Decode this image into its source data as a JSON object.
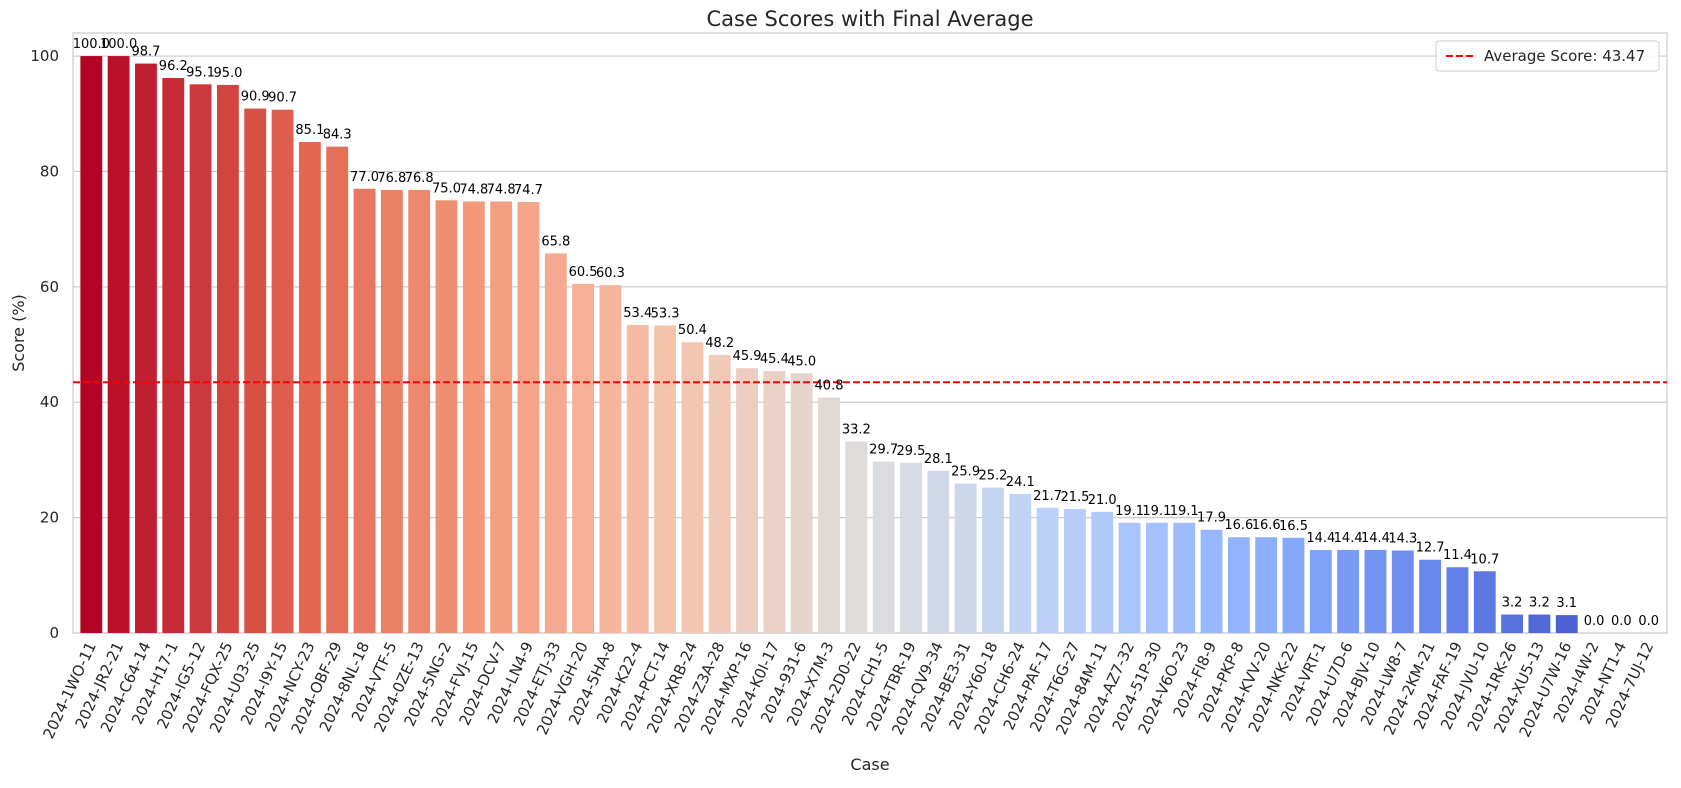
{
  "chart_data": {
    "type": "bar",
    "title": "Case Scores with Final Average",
    "xlabel": "Case",
    "ylabel": "Score (%)",
    "ylim": [
      0,
      104
    ],
    "yticks": [
      0,
      20,
      40,
      60,
      80,
      100
    ],
    "grid": "horizontal",
    "legend": {
      "placement": "top-right",
      "label": "Average Score: 43.47",
      "color": "#ff0000",
      "style": "dashed"
    },
    "average": 43.47,
    "colormap": "coolwarm",
    "categories": [
      "2024-1WO-11",
      "2024-JR2-21",
      "2024-C64-14",
      "2024-H17-1",
      "2024-IG5-12",
      "2024-FQX-25",
      "2024-U03-25",
      "2024-I9Y-15",
      "2024-NCY-23",
      "2024-OBF-29",
      "2024-8NL-18",
      "2024-VTF-5",
      "2024-0ZE-13",
      "2024-5NG-2",
      "2024-FVJ-15",
      "2024-DCV-7",
      "2024-LN4-9",
      "2024-ETJ-33",
      "2024-VGH-20",
      "2024-5HA-8",
      "2024-K22-4",
      "2024-PCT-14",
      "2024-XRB-24",
      "2024-Z3A-28",
      "2024-MXP-16",
      "2024-K0I-17",
      "2024-931-6",
      "2024-X7M-3",
      "2024-2D0-22",
      "2024-CH1-5",
      "2024-TBR-19",
      "2024-QV9-34",
      "2024-BE3-31",
      "2024-Y60-18",
      "2024-CH6-24",
      "2024-PAF-17",
      "2024-T6G-27",
      "2024-84M-11",
      "2024-AZ7-32",
      "2024-51P-30",
      "2024-V6O-23",
      "2024-FI8-9",
      "2024-PKP-8",
      "2024-KVV-20",
      "2024-NKK-22",
      "2024-VRT-1",
      "2024-U7D-6",
      "2024-BJV-10",
      "2024-LW8-7",
      "2024-2KM-21",
      "2024-FAF-19",
      "2024-JVU-10",
      "2024-1RK-26",
      "2024-XU5-13",
      "2024-U7W-16",
      "2024-I4W-2",
      "2024-NT1-4",
      "2024-7UJ-12"
    ],
    "values": [
      100.0,
      100.0,
      98.7,
      96.2,
      95.1,
      95.0,
      90.9,
      90.7,
      85.1,
      84.3,
      77.0,
      76.8,
      76.8,
      75.0,
      74.8,
      74.8,
      74.7,
      65.8,
      60.5,
      60.3,
      53.4,
      53.3,
      50.4,
      48.2,
      45.9,
      45.4,
      45.0,
      40.8,
      33.2,
      29.7,
      29.5,
      28.1,
      25.9,
      25.2,
      24.1,
      21.7,
      21.5,
      21.0,
      19.1,
      19.1,
      19.1,
      17.9,
      16.6,
      16.6,
      16.5,
      14.4,
      14.4,
      14.4,
      14.3,
      12.7,
      11.4,
      10.7,
      3.2,
      3.2,
      3.1,
      0.0,
      0.0,
      0.0
    ],
    "value_labels": [
      "100.0",
      "100.0",
      "98.7",
      "96.2",
      "95.1",
      "95.0",
      "90.9",
      "90.7",
      "85.1",
      "84.3",
      "77.0",
      "76.8",
      "76.8",
      "75.0",
      "74.8",
      "74.8",
      "74.7",
      "65.8",
      "60.5",
      "60.3",
      "53.4",
      "53.3",
      "50.4",
      "48.2",
      "45.9",
      "45.4",
      "45.0",
      "40.8",
      "33.2",
      "29.7",
      "29.5",
      "28.1",
      "25.9",
      "25.2",
      "24.1",
      "21.7",
      "21.5",
      "21.0",
      "19.1",
      "19.1",
      "19.1",
      "17.9",
      "16.6",
      "16.6",
      "16.5",
      "14.4",
      "14.4",
      "14.4",
      "14.3",
      "12.7",
      "11.4",
      "10.7",
      "3.2",
      "3.2",
      "3.1",
      "0.0",
      "0.0",
      "0.0"
    ]
  }
}
